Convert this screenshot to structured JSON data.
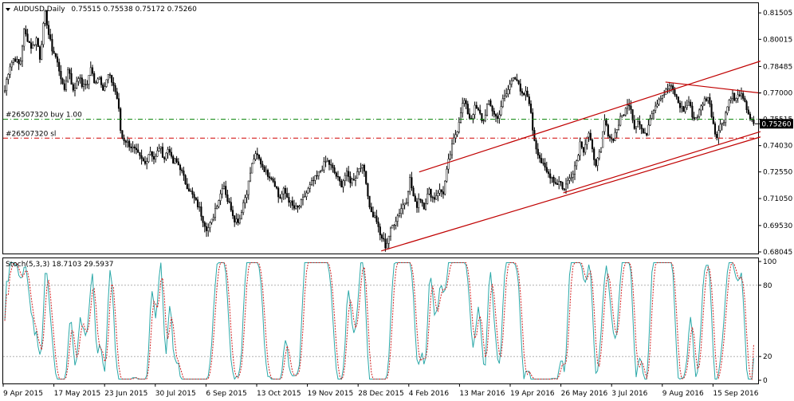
{
  "chart_data": [
    {
      "type": "candlestick",
      "symbol": "AUDUSD",
      "timeframe": "Daily",
      "title": "AUDUSD,Daily",
      "ohlc_text": "0.75515 0.75538 0.75172 0.75260",
      "open": 0.75515,
      "high": 0.75538,
      "low": 0.75172,
      "close": 0.7526,
      "current_price_label": "0.75260",
      "ylim": [
        0.67955,
        0.8205
      ],
      "yticks": [
        "0.81505",
        "0.80015",
        "0.78485",
        "0.77000",
        "0.75515",
        "0.74030",
        "0.72550",
        "0.71050",
        "0.69530",
        "0.68045"
      ],
      "xticks": [
        "9 Apr 2015",
        "17 May 2015",
        "23 Jun 2015",
        "30 Jul 2015",
        "6 Sep 2015",
        "13 Oct 2015",
        "19 Nov 2015",
        "28 Dec 2015",
        "4 Feb 2016",
        "13 Mar 2016",
        "19 Apr 2016",
        "26 May 2016",
        "3 Jul 2016",
        "9 Aug 2016",
        "15 Sep 2016"
      ],
      "price_anchors": [
        [
          0,
          0.77
        ],
        [
          3,
          0.76
        ],
        [
          7,
          0.775
        ],
        [
          12,
          0.785
        ],
        [
          18,
          0.79
        ],
        [
          25,
          0.785
        ],
        [
          30,
          0.805
        ],
        [
          35,
          0.8
        ],
        [
          40,
          0.795
        ],
        [
          46,
          0.801
        ],
        [
          50,
          0.79
        ],
        [
          55,
          0.81
        ],
        [
          57,
          0.816
        ],
        [
          60,
          0.805
        ],
        [
          65,
          0.795
        ],
        [
          70,
          0.79
        ],
        [
          76,
          0.78
        ],
        [
          80,
          0.77
        ],
        [
          86,
          0.785
        ],
        [
          92,
          0.77
        ],
        [
          98,
          0.78
        ],
        [
          104,
          0.773
        ],
        [
          110,
          0.776
        ],
        [
          114,
          0.785
        ],
        [
          118,
          0.775
        ],
        [
          124,
          0.78
        ],
        [
          130,
          0.772
        ],
        [
          136,
          0.78
        ],
        [
          142,
          0.775
        ],
        [
          148,
          0.765
        ],
        [
          152,
          0.745
        ],
        [
          158,
          0.743
        ],
        [
          164,
          0.74
        ],
        [
          170,
          0.737
        ],
        [
          176,
          0.733
        ],
        [
          182,
          0.73
        ],
        [
          188,
          0.738
        ],
        [
          194,
          0.732
        ],
        [
          200,
          0.74
        ],
        [
          206,
          0.733
        ],
        [
          212,
          0.74
        ],
        [
          216,
          0.73
        ],
        [
          220,
          0.732
        ],
        [
          226,
          0.728
        ],
        [
          232,
          0.72
        ],
        [
          238,
          0.715
        ],
        [
          244,
          0.71
        ],
        [
          250,
          0.705
        ],
        [
          255,
          0.698
        ],
        [
          260,
          0.693
        ],
        [
          266,
          0.698
        ],
        [
          270,
          0.705
        ],
        [
          276,
          0.712
        ],
        [
          280,
          0.72
        ],
        [
          285,
          0.71
        ],
        [
          290,
          0.705
        ],
        [
          294,
          0.699
        ],
        [
          300,
          0.698
        ],
        [
          305,
          0.708
        ],
        [
          310,
          0.715
        ],
        [
          314,
          0.725
        ],
        [
          318,
          0.733
        ],
        [
          322,
          0.735
        ],
        [
          328,
          0.73
        ],
        [
          334,
          0.725
        ],
        [
          340,
          0.723
        ],
        [
          346,
          0.718
        ],
        [
          350,
          0.71
        ],
        [
          356,
          0.715
        ],
        [
          362,
          0.71
        ],
        [
          368,
          0.705
        ],
        [
          374,
          0.705
        ],
        [
          380,
          0.71
        ],
        [
          386,
          0.715
        ],
        [
          392,
          0.72
        ],
        [
          398,
          0.723
        ],
        [
          404,
          0.728
        ],
        [
          410,
          0.732
        ],
        [
          416,
          0.728
        ],
        [
          422,
          0.723
        ],
        [
          428,
          0.718
        ],
        [
          434,
          0.725
        ],
        [
          440,
          0.72
        ],
        [
          446,
          0.723
        ],
        [
          452,
          0.73
        ],
        [
          458,
          0.725
        ],
        [
          462,
          0.71
        ],
        [
          466,
          0.702
        ],
        [
          472,
          0.699
        ],
        [
          476,
          0.69
        ],
        [
          480,
          0.688
        ],
        [
          484,
          0.683
        ],
        [
          488,
          0.69
        ],
        [
          492,
          0.695
        ],
        [
          498,
          0.7
        ],
        [
          504,
          0.706
        ],
        [
          510,
          0.71
        ],
        [
          514,
          0.722
        ],
        [
          518,
          0.713
        ],
        [
          522,
          0.705
        ],
        [
          526,
          0.712
        ],
        [
          532,
          0.706
        ],
        [
          538,
          0.715
        ],
        [
          544,
          0.71
        ],
        [
          550,
          0.715
        ],
        [
          556,
          0.714
        ],
        [
          562,
          0.73
        ],
        [
          566,
          0.738
        ],
        [
          570,
          0.745
        ],
        [
          574,
          0.75
        ],
        [
          578,
          0.76
        ],
        [
          582,
          0.766
        ],
        [
          586,
          0.76
        ],
        [
          590,
          0.755
        ],
        [
          596,
          0.762
        ],
        [
          602,
          0.758
        ],
        [
          606,
          0.753
        ],
        [
          612,
          0.765
        ],
        [
          618,
          0.76
        ],
        [
          624,
          0.755
        ],
        [
          630,
          0.765
        ],
        [
          636,
          0.77
        ],
        [
          640,
          0.775
        ],
        [
          644,
          0.78
        ],
        [
          648,
          0.778
        ],
        [
          654,
          0.768
        ],
        [
          660,
          0.77
        ],
        [
          664,
          0.765
        ],
        [
          668,
          0.75
        ],
        [
          672,
          0.74
        ],
        [
          676,
          0.735
        ],
        [
          680,
          0.73
        ],
        [
          686,
          0.725
        ],
        [
          692,
          0.723
        ],
        [
          698,
          0.718
        ],
        [
          702,
          0.722
        ],
        [
          706,
          0.715
        ],
        [
          712,
          0.72
        ],
        [
          718,
          0.725
        ],
        [
          724,
          0.733
        ],
        [
          728,
          0.743
        ],
        [
          732,
          0.738
        ],
        [
          738,
          0.748
        ],
        [
          744,
          0.735
        ],
        [
          748,
          0.73
        ],
        [
          754,
          0.738
        ],
        [
          758,
          0.755
        ],
        [
          762,
          0.748
        ],
        [
          768,
          0.743
        ],
        [
          774,
          0.75
        ],
        [
          778,
          0.755
        ],
        [
          784,
          0.76
        ],
        [
          790,
          0.765
        ],
        [
          796,
          0.75
        ],
        [
          800,
          0.755
        ],
        [
          806,
          0.748
        ],
        [
          810,
          0.745
        ],
        [
          816,
          0.758
        ],
        [
          822,
          0.763
        ],
        [
          828,
          0.768
        ],
        [
          834,
          0.77
        ],
        [
          840,
          0.774
        ],
        [
          846,
          0.77
        ],
        [
          852,
          0.763
        ],
        [
          858,
          0.76
        ],
        [
          864,
          0.765
        ],
        [
          870,
          0.755
        ],
        [
          876,
          0.758
        ],
        [
          882,
          0.765
        ],
        [
          888,
          0.768
        ],
        [
          894,
          0.755
        ],
        [
          898,
          0.745
        ],
        [
          904,
          0.752
        ],
        [
          908,
          0.755
        ],
        [
          914,
          0.765
        ],
        [
          918,
          0.77
        ],
        [
          922,
          0.765
        ],
        [
          928,
          0.77
        ],
        [
          932,
          0.766
        ],
        [
          938,
          0.76
        ],
        [
          942,
          0.754
        ],
        [
          946,
          0.7526
        ]
      ],
      "horizontal_lines": [
        {
          "label": "#26507320 buy 1.00",
          "price": 0.75515,
          "color": "#008000",
          "style": "dash-dot"
        },
        {
          "label": "#26507320 sl",
          "price": 0.7445,
          "color": "#d00000",
          "style": "dash-dot"
        }
      ],
      "trendlines": [
        {
          "from": [
            "28 Dec 2015",
            0.681
          ],
          "to": [
            "end",
            0.7452
          ],
          "color": "#c00000"
        },
        {
          "from": [
            "4 Feb 2016",
            0.7255
          ],
          "to": [
            "end",
            0.7879
          ],
          "color": "#c00000"
        },
        {
          "from": [
            "26 May 2016",
            0.7137
          ],
          "to": [
            "end",
            0.7482
          ],
          "color": "#c00000"
        },
        {
          "from": [
            "9 Aug 2016",
            0.7761
          ],
          "to": [
            "end",
            0.7699
          ],
          "color": "#c00000"
        }
      ]
    },
    {
      "type": "line",
      "title": "Stoch(5,3,3) 18.7103 29.5937",
      "ylim": [
        0,
        100
      ],
      "yticks": [
        "100",
        "80",
        "20",
        "0"
      ],
      "levels": [
        20,
        80
      ],
      "series": [
        {
          "name": "main",
          "color": "#2aa8a8",
          "value": 18.7103
        },
        {
          "name": "signal",
          "color": "#d02020",
          "value": 29.5937
        }
      ]
    }
  ],
  "colors": {
    "background": "#ffffff",
    "candles": "#000000",
    "trend": "#c00000",
    "buy_line": "#008000",
    "sl_line": "#d00000",
    "stoch_main": "#2aa8a8",
    "stoch_signal": "#d02020",
    "price_badge": "#000000"
  }
}
